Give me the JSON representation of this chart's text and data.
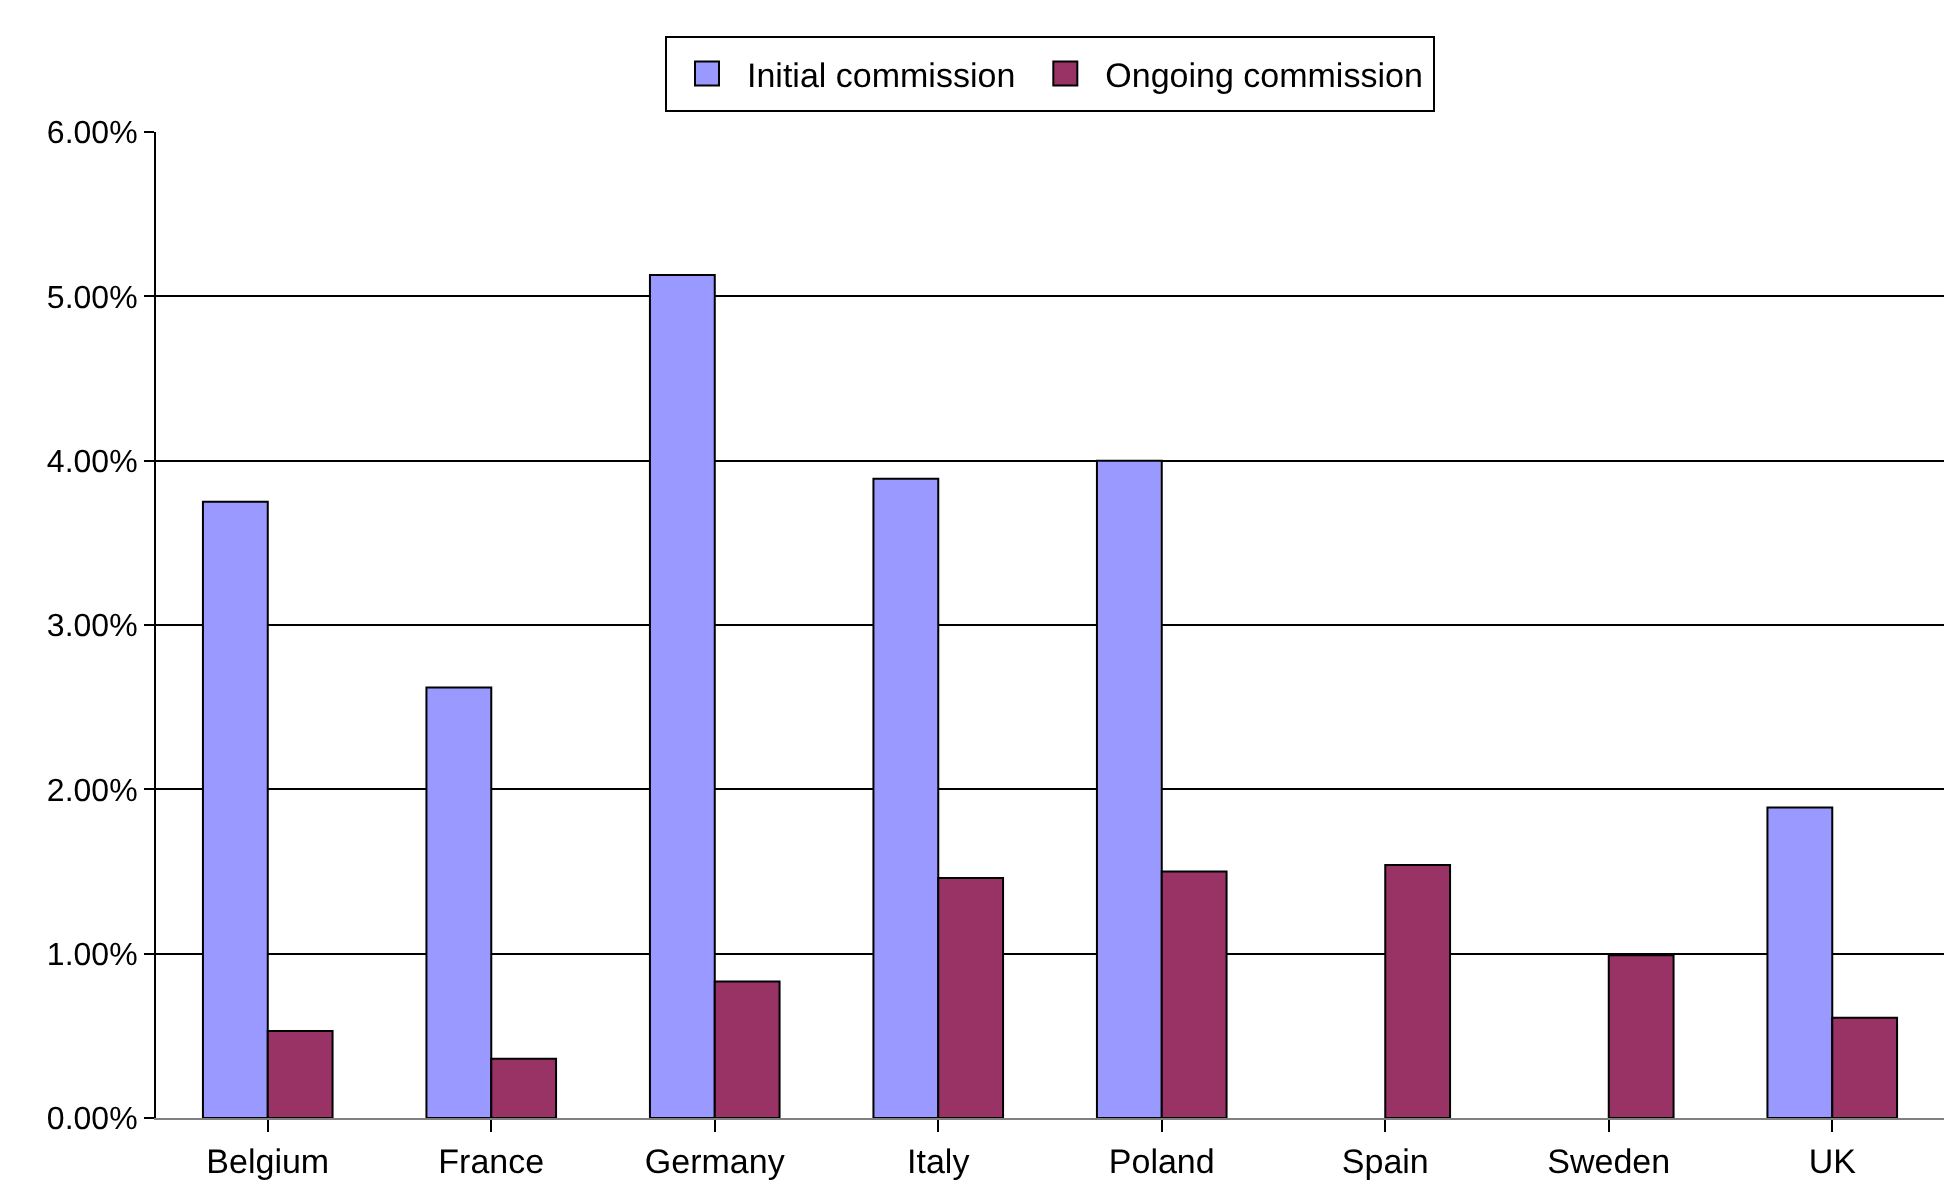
{
  "chart_data": {
    "type": "bar",
    "categories": [
      "Belgium",
      "France",
      "Germany",
      "Italy",
      "Poland",
      "Spain",
      "Sweden",
      "UK"
    ],
    "series": [
      {
        "name": "Initial commission",
        "color": "#9999ff",
        "values": [
          3.75,
          2.62,
          5.13,
          3.89,
          4.0,
          null,
          null,
          1.89
        ]
      },
      {
        "name": "Ongoing commission",
        "color": "#993366",
        "values": [
          0.53,
          0.36,
          0.83,
          1.46,
          1.5,
          1.54,
          0.99,
          0.61
        ]
      }
    ],
    "ylim": [
      0,
      6
    ],
    "yticks": [
      {
        "value": 0,
        "label": "0.00%"
      },
      {
        "value": 1,
        "label": "1.00%"
      },
      {
        "value": 2,
        "label": "2.00%"
      },
      {
        "value": 3,
        "label": "3.00%"
      },
      {
        "value": 4,
        "label": "4.00%"
      },
      {
        "value": 5,
        "label": "5.00%"
      },
      {
        "value": 6,
        "label": "6.00%"
      }
    ],
    "grid": "y",
    "legend": "top"
  }
}
